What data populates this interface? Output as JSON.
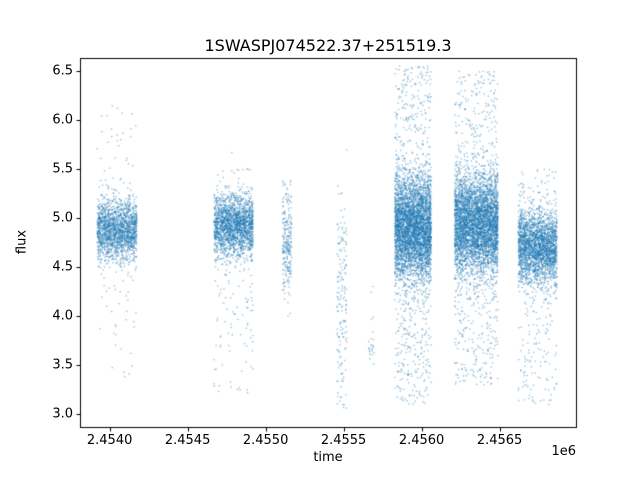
{
  "title": "1SWASPJ074522.37+251519.3",
  "chart_data": {
    "type": "scatter",
    "title": "1SWASPJ074522.37+251519.3",
    "xlabel": "time",
    "ylabel": "flux",
    "x_offset_label": "1e6",
    "xlim": [
      2453810,
      2456990
    ],
    "ylim": [
      2.87,
      6.63
    ],
    "xticks": {
      "values": [
        2454000,
        2454500,
        2455000,
        2455500,
        2456000,
        2456500
      ],
      "labels": [
        "2.4540",
        "2.4545",
        "2.4550",
        "2.4555",
        "2.4560",
        "2.4565"
      ]
    },
    "yticks": {
      "values": [
        3.0,
        3.5,
        4.0,
        4.5,
        5.0,
        5.5,
        6.0,
        6.5
      ],
      "labels": [
        "3.0",
        "3.5",
        "4.0",
        "4.5",
        "5.0",
        "5.5",
        "6.0",
        "6.5"
      ]
    },
    "grid": false,
    "legend": "none",
    "point_color": "#1f77b4",
    "point_alpha": 0.45,
    "point_size": 1.4,
    "clusters": [
      {
        "x_range": [
          2453920,
          2454175
        ],
        "core": {
          "center": 4.88,
          "sigma": 0.15,
          "n": 1800
        },
        "tail": {
          "range": [
            3.3,
            6.15
          ],
          "n": 100
        }
      },
      {
        "x_range": [
          2454670,
          2454920
        ],
        "core": {
          "center": 4.92,
          "sigma": 0.16,
          "n": 2000
        },
        "tail": {
          "range": [
            3.2,
            5.55
          ],
          "n": 140
        }
      },
      {
        "x_range": [
          2455108,
          2455168
        ],
        "core": {
          "center": 4.75,
          "sigma": 0.28,
          "n": 200
        },
        "tail": {
          "range": [
            4.2,
            5.35
          ],
          "n": 60
        }
      },
      {
        "x_range": [
          2455458,
          2455520
        ],
        "core": {
          "center": 4.4,
          "sigma": 0.45,
          "n": 80
        },
        "tail": {
          "range": [
            3.05,
            5.0
          ],
          "n": 90
        }
      },
      {
        "x_range": [
          2455660,
          2455695
        ],
        "core": {
          "center": 3.7,
          "sigma": 0.08,
          "n": 18
        },
        "tail": {
          "range": [
            3.55,
            4.35
          ],
          "n": 6
        }
      },
      {
        "x_range": [
          2455828,
          2456062
        ],
        "core": {
          "center": 4.9,
          "sigma": 0.27,
          "n": 4000
        },
        "tail": {
          "range": [
            3.1,
            6.55
          ],
          "n": 700
        }
      },
      {
        "x_range": [
          2456212,
          2456490
        ],
        "core": {
          "center": 4.93,
          "sigma": 0.26,
          "n": 4200
        },
        "tail": {
          "range": [
            3.3,
            6.5
          ],
          "n": 650
        }
      },
      {
        "x_range": [
          2456620,
          2456868
        ],
        "core": {
          "center": 4.7,
          "sigma": 0.18,
          "n": 2400
        },
        "tail": {
          "range": [
            3.1,
            5.5
          ],
          "n": 300
        }
      }
    ]
  }
}
